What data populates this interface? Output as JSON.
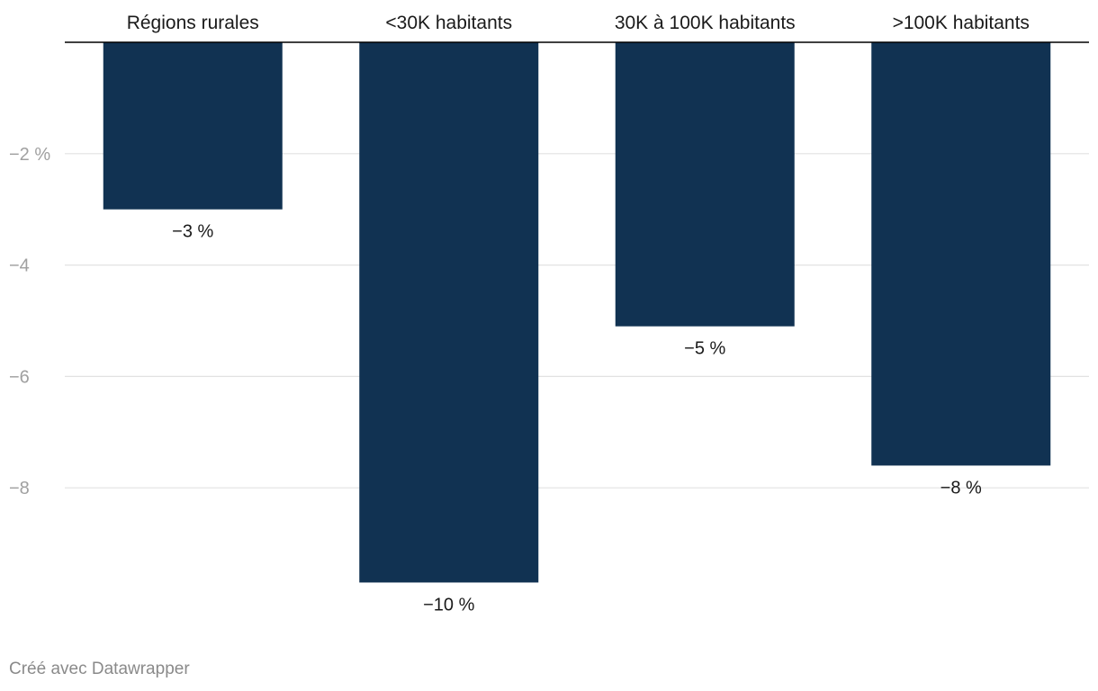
{
  "chart_data": {
    "type": "bar",
    "categories": [
      "Régions rurales",
      "<30K habitants",
      "30K à 100K habitants",
      ">100K habitants"
    ],
    "values": [
      -3,
      -9.7,
      -5.1,
      -7.6
    ],
    "value_labels": [
      "−3 %",
      "−10 %",
      "−5 %",
      "−8 %"
    ],
    "y_ticks": [
      -2,
      -4,
      -6,
      -8
    ],
    "y_tick_labels": [
      "−2 %",
      "−4",
      "−6",
      "−8"
    ],
    "ylim": [
      -10,
      0
    ],
    "category_labels_position": "top",
    "grid": true,
    "bar_color": "#113252"
  },
  "footer": {
    "credit": "Créé avec Datawrapper"
  }
}
